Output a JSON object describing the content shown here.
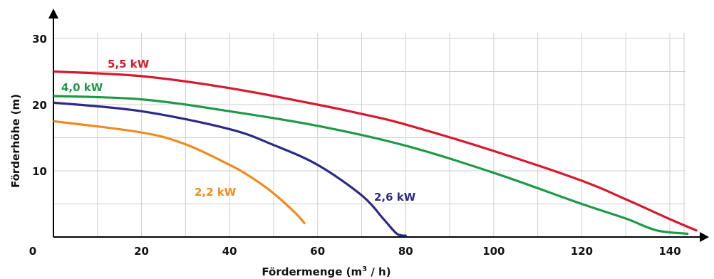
{
  "chart_data": {
    "type": "line",
    "title": "",
    "xlabel": "Fördermenge (m³ / h)",
    "xlabel_parts": {
      "before": "Fördermenge (m",
      "sup": "3",
      "after": " / h)"
    },
    "ylabel": "Förderhöhe (m)",
    "xlim": [
      0,
      146
    ],
    "ylim": [
      0,
      33
    ],
    "origin_label": "0",
    "x_ticks": [
      20,
      40,
      60,
      80,
      100,
      120,
      140
    ],
    "y_ticks": [
      10,
      20,
      30
    ],
    "grid": true,
    "legend": "none",
    "series": [
      {
        "name": "5,5 kW",
        "color": "#d7192e",
        "x": [
          0,
          20,
          40,
          60,
          70,
          80,
          100,
          120,
          130,
          140,
          146
        ],
        "y": [
          25,
          24.3,
          22.5,
          20,
          18.6,
          17,
          13,
          8.5,
          5.7,
          2.7,
          1
        ]
      },
      {
        "name": "4,0 kW",
        "color": "#1e9a47",
        "x": [
          0,
          20,
          40,
          60,
          80,
          100,
          120,
          130,
          137,
          144
        ],
        "y": [
          21.3,
          20.8,
          19,
          16.8,
          13.8,
          9.7,
          5,
          2.8,
          1,
          0.5
        ]
      },
      {
        "name": "2,6 kW",
        "color": "#2b2a86",
        "x": [
          0,
          20,
          40,
          50,
          60,
          70,
          75,
          78,
          80
        ],
        "y": [
          20.3,
          19,
          16.3,
          13.9,
          10.9,
          6.3,
          2.7,
          0.5,
          0.2
        ]
      },
      {
        "name": "2,2 kW",
        "color": "#f08a1c",
        "x": [
          0,
          20,
          30,
          40,
          45,
          50,
          55,
          57
        ],
        "y": [
          17.5,
          15.8,
          14,
          10.9,
          9,
          6.6,
          3.6,
          2.1
        ]
      }
    ]
  }
}
